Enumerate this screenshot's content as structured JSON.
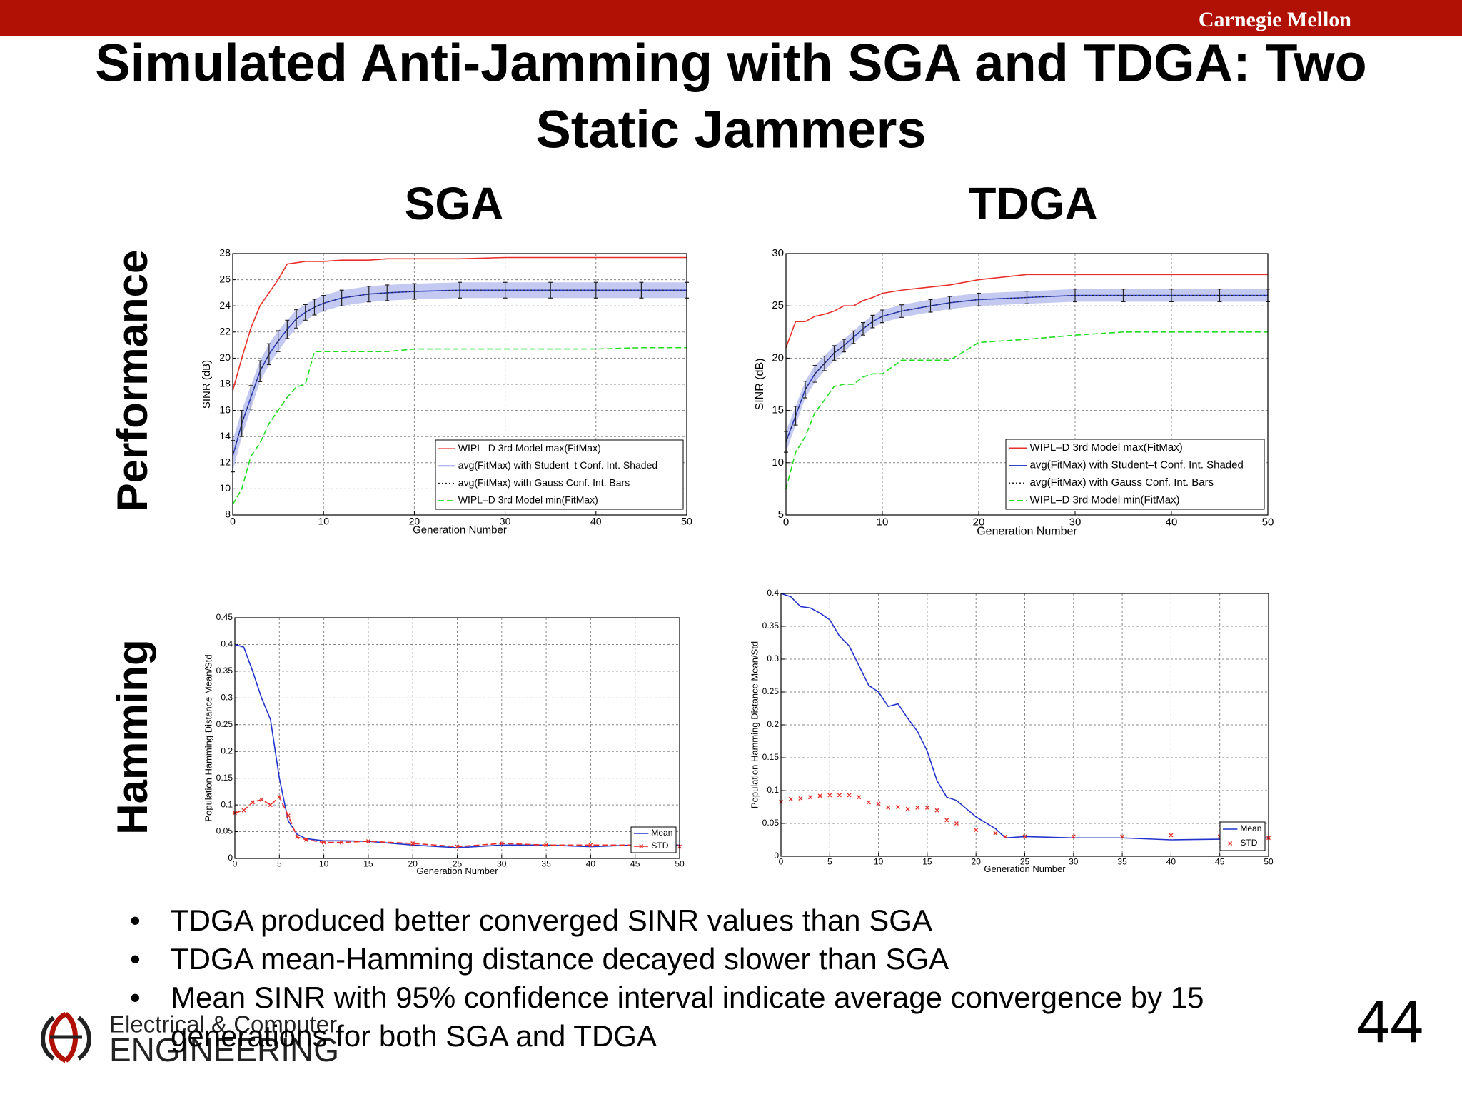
{
  "org": "Carnegie Mellon",
  "title_lines": [
    "Simulated Anti-Jamming with SGA and TDGA: Two",
    "Static Jammers"
  ],
  "column_headers": [
    "SGA",
    "TDGA"
  ],
  "row_headers": [
    "Performance",
    "Hamming"
  ],
  "bullets": [
    "TDGA produced better converged SINR values than SGA",
    "TDGA mean-Hamming distance decayed slower than SGA",
    "Mean SINR with 95% confidence interval indicate average convergence by 15 generations for both SGA and TDGA"
  ],
  "page_number": "44",
  "logo_lines": [
    "Electrical & Computer",
    "ENGINEERING"
  ],
  "chart_data": [
    {
      "type": "line",
      "xlabel": "Generation Number",
      "ylabel": "SINR (dB)",
      "grid": true,
      "legend": "lower right",
      "x": [
        0,
        1,
        2,
        3,
        4,
        5,
        6,
        7,
        8,
        9,
        10,
        12,
        15,
        17,
        20,
        25,
        30,
        35,
        40,
        45,
        50
      ],
      "xlim": [
        0,
        50
      ],
      "xticks": [
        0,
        10,
        20,
        30,
        40,
        50
      ],
      "ylim": [
        8,
        28
      ],
      "yticks": [
        8,
        10,
        12,
        14,
        16,
        18,
        20,
        22,
        24,
        26,
        28
      ],
      "series": [
        {
          "name": "WIPL–D 3rd Model max(FitMax)",
          "color": "#e8302a",
          "linestyle": "solid",
          "values": [
            17.5,
            20,
            22.3,
            24,
            25,
            26,
            27.2,
            27.3,
            27.4,
            27.4,
            27.4,
            27.5,
            27.5,
            27.6,
            27.6,
            27.6,
            27.7,
            27.7,
            27.7,
            27.7,
            27.7
          ]
        },
        {
          "name": "avg(FitMax) with Student–t Conf. Int. Shaded",
          "color": "#3344cc",
          "linestyle": "solid",
          "ci_color": "#c4c9f2",
          "values": [
            12.5,
            15,
            17,
            19,
            20.3,
            21.3,
            22.2,
            23,
            23.5,
            23.9,
            24.2,
            24.6,
            24.9,
            25.0,
            25.1,
            25.2,
            25.2,
            25.2,
            25.2,
            25.2,
            25.2
          ],
          "ci": [
            1.2,
            1,
            0.9,
            0.8,
            0.8,
            0.8,
            0.7,
            0.7,
            0.6,
            0.6,
            0.6,
            0.6,
            0.6,
            0.6,
            0.6,
            0.6,
            0.6,
            0.6,
            0.6,
            0.6,
            0.6
          ]
        },
        {
          "name": "avg(FitMax) with Gauss Conf. Int. Bars",
          "color": "#222222",
          "linestyle": "dotted",
          "values": [
            12.5,
            15,
            17,
            19,
            20.3,
            21.3,
            22.2,
            23,
            23.5,
            23.9,
            24.2,
            24.6,
            24.9,
            25.0,
            25.1,
            25.2,
            25.2,
            25.2,
            25.2,
            25.2,
            25.2
          ],
          "errors": [
            1.2,
            1,
            0.9,
            0.8,
            0.8,
            0.8,
            0.7,
            0.7,
            0.6,
            0.6,
            0.6,
            0.6,
            0.6,
            0.6,
            0.6,
            0.6,
            0.6,
            0.6,
            0.6,
            0.6,
            0.6
          ]
        },
        {
          "name": "WIPL–D 3rd Model min(FitMax)",
          "color": "#22dd22",
          "linestyle": "dashed",
          "values": [
            8.8,
            10,
            12.5,
            13.5,
            15,
            16,
            17,
            17.8,
            18,
            20.5,
            20.5,
            20.5,
            20.5,
            20.5,
            20.7,
            20.7,
            20.7,
            20.7,
            20.7,
            20.8,
            20.8
          ]
        }
      ]
    },
    {
      "type": "line",
      "xlabel": "Generation Number",
      "ylabel": "SINR (dB)",
      "grid": true,
      "legend": "lower right",
      "x": [
        0,
        1,
        2,
        3,
        4,
        5,
        6,
        7,
        8,
        9,
        10,
        12,
        15,
        17,
        20,
        25,
        30,
        35,
        40,
        45,
        50
      ],
      "xlim": [
        0,
        50
      ],
      "xticks": [
        0,
        10,
        20,
        30,
        40,
        50
      ],
      "ylim": [
        5,
        30
      ],
      "yticks": [
        5,
        10,
        15,
        20,
        25,
        30
      ],
      "series": [
        {
          "name": "WIPL–D 3rd Model max(FitMax)",
          "color": "#e8302a",
          "linestyle": "solid",
          "values": [
            21,
            23.5,
            23.5,
            24,
            24.2,
            24.5,
            25,
            25,
            25.5,
            25.8,
            26.2,
            26.5,
            26.8,
            27,
            27.5,
            28,
            28,
            28,
            28,
            28,
            28
          ]
        },
        {
          "name": "avg(FitMax) with Student–t Conf. Int. Shaded",
          "color": "#3344cc",
          "linestyle": "solid",
          "ci_color": "#c4c9f2",
          "values": [
            12,
            14.5,
            17,
            18.5,
            19.5,
            20.5,
            21.2,
            22,
            22.8,
            23.5,
            24,
            24.5,
            25,
            25.3,
            25.6,
            25.8,
            26,
            26,
            26,
            26,
            26
          ],
          "ci": [
            1,
            0.9,
            0.8,
            0.8,
            0.7,
            0.7,
            0.6,
            0.6,
            0.6,
            0.6,
            0.6,
            0.6,
            0.6,
            0.6,
            0.6,
            0.6,
            0.6,
            0.6,
            0.6,
            0.6,
            0.6
          ]
        },
        {
          "name": "avg(FitMax) with Gauss Conf. Int. Bars",
          "color": "#222222",
          "linestyle": "dotted",
          "values": [
            12,
            14.5,
            17,
            18.5,
            19.5,
            20.5,
            21.2,
            22,
            22.8,
            23.5,
            24,
            24.5,
            25,
            25.3,
            25.6,
            25.8,
            26,
            26,
            26,
            26,
            26
          ],
          "errors": [
            1,
            0.9,
            0.8,
            0.8,
            0.7,
            0.7,
            0.6,
            0.6,
            0.6,
            0.6,
            0.6,
            0.6,
            0.6,
            0.6,
            0.6,
            0.6,
            0.6,
            0.6,
            0.6,
            0.6,
            0.6
          ]
        },
        {
          "name": "WIPL–D 3rd Model min(FitMax)",
          "color": "#22dd22",
          "linestyle": "dashed",
          "values": [
            7.5,
            11,
            12.5,
            14.8,
            16,
            17.3,
            17.5,
            17.5,
            18.2,
            18.5,
            18.5,
            19.8,
            19.8,
            19.8,
            21.5,
            21.8,
            22.2,
            22.5,
            22.5,
            22.5,
            22.5
          ]
        }
      ]
    },
    {
      "type": "line",
      "xlabel": "Generation Number",
      "ylabel": "Population Hamming Distance Mean/Std",
      "grid": true,
      "legend": "lower right",
      "x": [
        0,
        1,
        2,
        3,
        4,
        5,
        6,
        7,
        8,
        10,
        12,
        15,
        20,
        25,
        30,
        35,
        40,
        45,
        50
      ],
      "xlim": [
        0,
        50
      ],
      "xticks": [
        0,
        5,
        10,
        15,
        20,
        25,
        30,
        35,
        40,
        45,
        50
      ],
      "ylim": [
        0,
        0.45
      ],
      "yticks": [
        0,
        0.05,
        0.1,
        0.15,
        0.2,
        0.25,
        0.3,
        0.35,
        0.4,
        0.45
      ],
      "series": [
        {
          "name": "Mean",
          "color": "#2233cc",
          "linestyle": "solid",
          "values": [
            0.4,
            0.395,
            0.35,
            0.3,
            0.26,
            0.15,
            0.07,
            0.045,
            0.037,
            0.033,
            0.033,
            0.032,
            0.025,
            0.02,
            0.025,
            0.025,
            0.022,
            0.025,
            0.025
          ]
        },
        {
          "name": "STD",
          "color": "#e8302a",
          "linestyle": "dashed",
          "marker": "x",
          "values": [
            0.085,
            0.09,
            0.105,
            0.11,
            0.1,
            0.115,
            0.08,
            0.04,
            0.035,
            0.03,
            0.03,
            0.032,
            0.028,
            0.022,
            0.028,
            0.025,
            0.025,
            0.025,
            0.022
          ]
        }
      ]
    },
    {
      "type": "line",
      "xlabel": "Generation Number",
      "ylabel": "Population Hamming Distance Mean/Std",
      "grid": true,
      "legend": "lower right",
      "x": [
        0,
        1,
        2,
        3,
        4,
        5,
        6,
        7,
        8,
        9,
        10,
        11,
        12,
        13,
        14,
        15,
        16,
        17,
        18,
        20,
        22,
        23,
        25,
        30,
        35,
        40,
        45,
        50
      ],
      "xlim": [
        0,
        50
      ],
      "xticks": [
        0,
        5,
        10,
        15,
        20,
        25,
        30,
        35,
        40,
        45,
        50
      ],
      "ylim": [
        0,
        0.4
      ],
      "yticks": [
        0,
        0.05,
        0.1,
        0.15,
        0.2,
        0.25,
        0.3,
        0.35,
        0.4
      ],
      "series": [
        {
          "name": "Mean",
          "color": "#2233cc",
          "linestyle": "solid",
          "values": [
            0.4,
            0.395,
            0.38,
            0.378,
            0.37,
            0.36,
            0.335,
            0.32,
            0.29,
            0.26,
            0.25,
            0.228,
            0.232,
            0.21,
            0.19,
            0.16,
            0.115,
            0.09,
            0.085,
            0.06,
            0.042,
            0.028,
            0.03,
            0.028,
            0.028,
            0.025,
            0.026,
            0.028
          ]
        },
        {
          "name": "STD",
          "color": "#e8302a",
          "linestyle": "none",
          "marker": "x",
          "values": [
            0.083,
            0.087,
            0.088,
            0.09,
            0.092,
            0.093,
            0.093,
            0.093,
            0.09,
            0.082,
            0.08,
            0.074,
            0.075,
            0.072,
            0.074,
            0.074,
            0.07,
            0.055,
            0.05,
            0.04,
            0.035,
            0.03,
            0.03,
            0.03,
            0.03,
            0.032,
            0.03,
            0.028
          ]
        }
      ]
    }
  ]
}
